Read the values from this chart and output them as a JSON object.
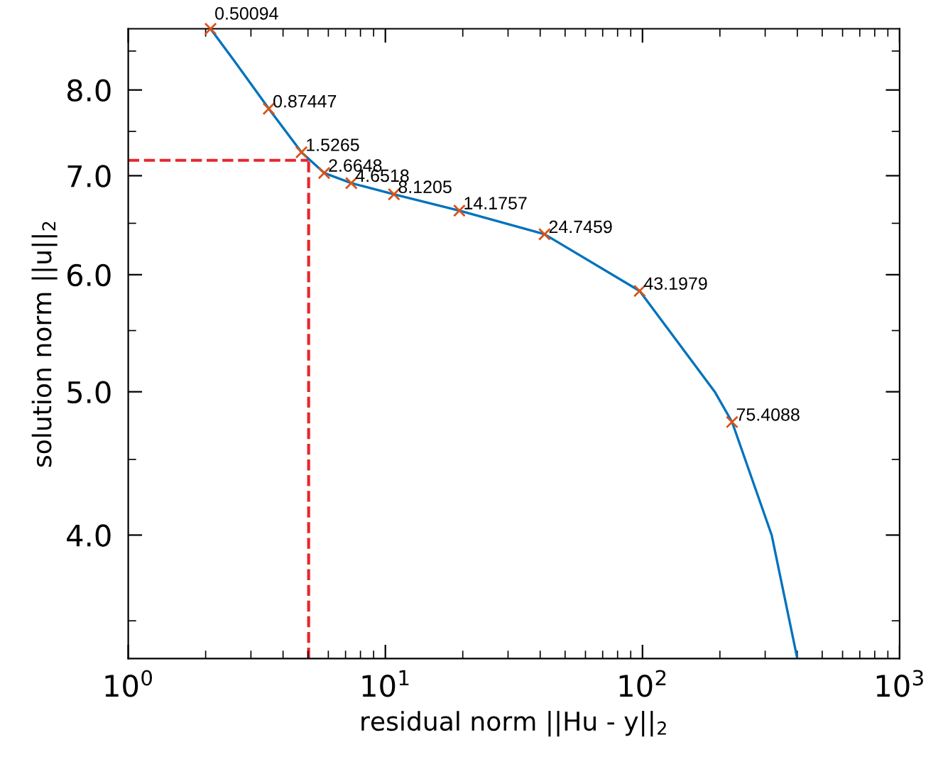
{
  "chart_data": {
    "type": "line",
    "xlabel": "residual norm ||Hu - y||$_{2}$",
    "ylabel": "solution norm ||u||$_{2}$",
    "log": "xy",
    "grid": false,
    "legend": false,
    "xlim": [
      1,
      1000
    ],
    "ylim": [
      3.3,
      8.8
    ],
    "xticks": [
      {
        "value": 1,
        "label": "10$^{0}$"
      },
      {
        "value": 10,
        "label": "10$^{1}$"
      },
      {
        "value": 100,
        "label": "10$^{2}$"
      },
      {
        "value": 1000,
        "label": "10$^{3}$"
      }
    ],
    "yticks": [
      {
        "value": 4,
        "label": "4.0"
      },
      {
        "value": 5,
        "label": "5.0"
      },
      {
        "value": 6,
        "label": "6.0"
      },
      {
        "value": 7,
        "label": "7.0"
      },
      {
        "value": 8,
        "label": "8.0"
      }
    ],
    "series": [
      {
        "type": "line",
        "color": "#0072bd",
        "marker": "none",
        "line_style": "solid",
        "x": [
          2.09,
          2.6,
          3.52,
          4.72,
          5.78,
          7.37,
          10.8,
          19.4,
          41.6,
          97.5,
          191,
          223,
          318,
          400
        ],
        "values": [
          8.8,
          8.36,
          7.77,
          7.26,
          7.03,
          6.92,
          6.8,
          6.63,
          6.39,
          5.85,
          5.0,
          4.77,
          4.0,
          3.3
        ]
      },
      {
        "type": "scatter",
        "color": "#d95319",
        "marker": "cross",
        "x": [
          2.09,
          3.52,
          4.72,
          5.78,
          7.37,
          10.8,
          19.4,
          41.6,
          97.5,
          223
        ],
        "values": [
          8.8,
          7.77,
          7.26,
          7.03,
          6.92,
          6.8,
          6.63,
          6.39,
          5.85,
          4.77
        ]
      }
    ],
    "ref_lines": [
      {
        "axis": "x",
        "value": 5.03,
        "color": "#e8262b",
        "line_style": "dashed"
      },
      {
        "axis": "y",
        "value": 7.17,
        "color": "#e8262b",
        "line_style": "dashed"
      }
    ],
    "annotations": [
      {
        "text": "0.50094",
        "x": 2.09,
        "y": 8.8
      },
      {
        "text": "0.87447",
        "x": 3.52,
        "y": 7.77
      },
      {
        "text": "1.5265",
        "x": 4.72,
        "y": 7.26
      },
      {
        "text": "2.6648",
        "x": 5.78,
        "y": 7.03
      },
      {
        "text": "4.6518",
        "x": 7.37,
        "y": 6.92
      },
      {
        "text": "8.1205",
        "x": 10.8,
        "y": 6.8
      },
      {
        "text": "14.1757",
        "x": 19.4,
        "y": 6.63
      },
      {
        "text": "24.7459",
        "x": 41.6,
        "y": 6.39
      },
      {
        "text": "43.1979",
        "x": 97.5,
        "y": 5.85
      },
      {
        "text": "75.4088",
        "x": 223,
        "y": 4.77
      }
    ]
  }
}
